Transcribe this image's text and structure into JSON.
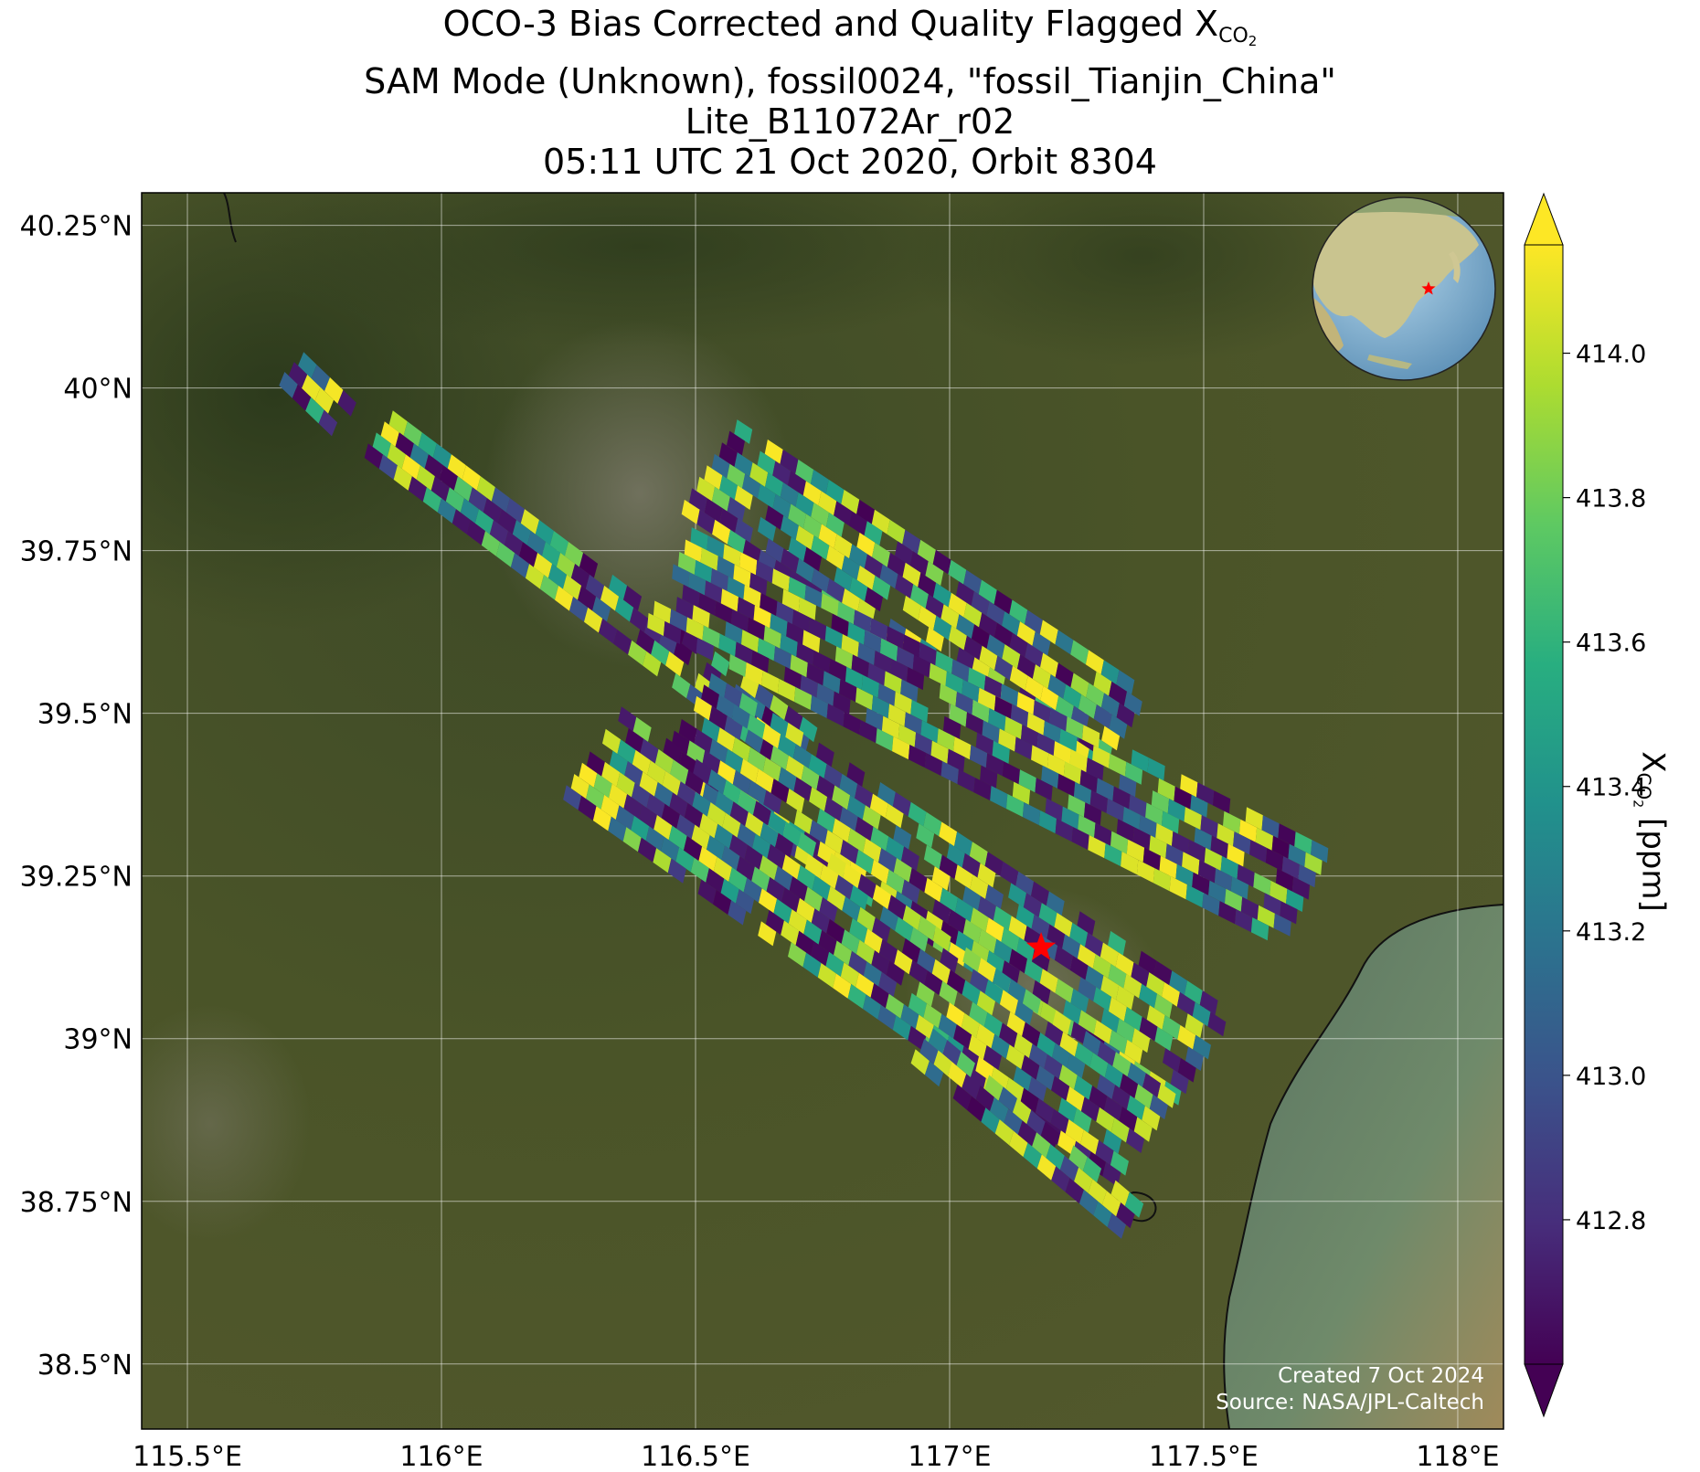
{
  "title": {
    "line1_prefix": "OCO-3 Bias Corrected and Quality Flagged X",
    "line1_sub": "CO",
    "line1_sub2": "2",
    "line2": "SAM Mode (Unknown), fossil0024, \"fossil_Tianjin_China\"",
    "line3": "Lite_B11072Ar_r02",
    "line4": "05:11 UTC 21 Oct 2020, Orbit 8304"
  },
  "credits": {
    "created": "Created 7 Oct 2024",
    "source": "Source: NASA/JPL-Caltech"
  },
  "colorbar": {
    "label_prefix": "X",
    "label_sub": "CO",
    "label_sub2": "2",
    "label_suffix": " [ppm]",
    "min": 412.6,
    "max": 414.15,
    "ticks": [
      "412.8",
      "413.0",
      "413.2",
      "413.4",
      "413.6",
      "413.8",
      "414.0"
    ],
    "colormap": "viridis",
    "extend": "both"
  },
  "map": {
    "lon_range": [
      115.41,
      118.09
    ],
    "lat_range": [
      38.4,
      40.3
    ],
    "lon_ticks": [
      "115.5°E",
      "116°E",
      "116.5°E",
      "117°E",
      "117.5°E",
      "118°E"
    ],
    "lat_ticks": [
      "38.5°N",
      "38.75°N",
      "39°N",
      "39.25°N",
      "39.5°N",
      "39.75°N",
      "40°N",
      "40.25°N"
    ],
    "target": {
      "lon": 117.18,
      "lat": 39.14,
      "color": "#ff0000"
    },
    "gridlines": true
  },
  "inset_globe": {
    "marker_color": "#ff0000"
  },
  "chart_data": {
    "type": "heatmap",
    "variable": "XCO2",
    "units": "ppm",
    "value_range": [
      412.6,
      414.15
    ],
    "swaths": [
      {
        "lon_start": 115.71,
        "lat_start": 40.04,
        "lon_end": 115.83,
        "lat_end": 39.95
      },
      {
        "lon_start": 115.88,
        "lat_start": 39.94,
        "lon_end": 116.72,
        "lat_end": 39.45
      },
      {
        "lon_start": 116.53,
        "lat_start": 39.89,
        "lon_end": 117.35,
        "lat_end": 39.47
      },
      {
        "lon_start": 116.45,
        "lat_start": 39.72,
        "lon_end": 117.72,
        "lat_end": 39.22
      },
      {
        "lon_start": 116.48,
        "lat_start": 39.5,
        "lon_end": 117.53,
        "lat_end": 38.97
      },
      {
        "lon_start": 116.3,
        "lat_start": 39.45,
        "lon_end": 117.4,
        "lat_end": 38.85
      },
      {
        "lon_start": 116.95,
        "lat_start": 39.0,
        "lon_end": 117.38,
        "lat_end": 38.72
      }
    ]
  }
}
